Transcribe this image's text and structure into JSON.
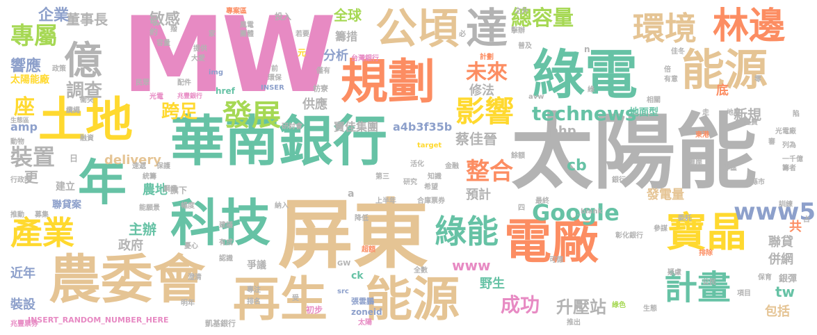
{
  "palette": {
    "pink": "#e78ac3",
    "green": "#66c2a5",
    "orange": "#fc8d62",
    "yellow": "#ffd92f",
    "tan": "#e5c494",
    "gray": "#b3b3b3",
    "lime": "#a6d854",
    "blue": "#8da0cb"
  },
  "words": [
    {
      "text": "MW",
      "color": "#e78ac3"
    },
    {
      "text": "太陽能",
      "color": "#b3b3b3"
    },
    {
      "text": "華南銀行",
      "color": "#66c2a5"
    },
    {
      "text": "屏東",
      "color": "#e5c494"
    },
    {
      "text": "農委會",
      "color": "#e5c494"
    },
    {
      "text": "科技",
      "color": "#66c2a5"
    },
    {
      "text": "綠電",
      "color": "#66c2a5"
    },
    {
      "text": "能源",
      "color": "#e5c494"
    },
    {
      "text": "土地",
      "color": "#ffd92f"
    },
    {
      "text": "規劃",
      "color": "#fc8d62"
    },
    {
      "text": "公頃",
      "color": "#e5c494"
    },
    {
      "text": "達",
      "color": "#b3b3b3"
    },
    {
      "text": "億",
      "color": "#b3b3b3"
    },
    {
      "text": "再生",
      "color": "#e5c494"
    },
    {
      "text": "能源",
      "color": "#e5c494"
    },
    {
      "text": "電廠",
      "color": "#fc8d62"
    },
    {
      "text": "年",
      "color": "#66c2a5"
    },
    {
      "text": "寶晶",
      "color": "#ffd92f"
    },
    {
      "text": "計畫",
      "color": "#66c2a5"
    },
    {
      "text": "林邊",
      "color": "#fc8d62"
    },
    {
      "text": "環境",
      "color": "#e5c494"
    },
    {
      "text": "產業",
      "color": "#ffd92f"
    },
    {
      "text": "發展",
      "color": "#a6d854"
    },
    {
      "text": "影響",
      "color": "#ffd92f"
    },
    {
      "text": "綠能",
      "color": "#66c2a5"
    },
    {
      "text": "總容量",
      "color": "#a6d854"
    },
    {
      "text": "專屬",
      "color": "#a6d854"
    },
    {
      "text": "Google",
      "color": "#66c2a5"
    },
    {
      "text": "technews",
      "color": "#66c2a5"
    },
    {
      "text": "整合",
      "color": "#fc8d62"
    },
    {
      "text": "www5",
      "color": "#8da0cb"
    },
    {
      "text": "成功",
      "color": "#e78ac3"
    },
    {
      "text": "升壓站",
      "color": "#b3b3b3"
    },
    {
      "text": "未來",
      "color": "#fc8d62"
    },
    {
      "text": "裝置",
      "color": "#b3b3b3"
    },
    {
      "text": "跨足",
      "color": "#ffd92f"
    },
    {
      "text": "座",
      "color": "#ffd92f"
    },
    {
      "text": "調查",
      "color": "#b3b3b3"
    },
    {
      "text": "董事長",
      "color": "#b3b3b3"
    },
    {
      "text": "敏感",
      "color": "#b3b3b3"
    },
    {
      "text": "企業",
      "color": "#8da0cb"
    },
    {
      "text": "響應",
      "color": "#8da0cb"
    },
    {
      "text": "太陽能廠",
      "color": "#ffd92f"
    },
    {
      "text": "全球",
      "color": "#a6d854"
    },
    {
      "text": "分析",
      "color": "#8da0cb"
    },
    {
      "text": "籌措",
      "color": "#b3b3b3"
    },
    {
      "text": "修法",
      "color": "#b3b3b3"
    },
    {
      "text": "供應",
      "color": "#b3b3b3"
    },
    {
      "text": "寶佳集團",
      "color": "#b3b3b3"
    },
    {
      "text": "a4b3f35b",
      "color": "#8da0cb"
    },
    {
      "text": "蔡佳晉",
      "color": "#b3b3b3"
    },
    {
      "text": "delivery",
      "color": "#e5c494"
    },
    {
      "text": "php",
      "color": "#b3b3b3"
    },
    {
      "text": "cb",
      "color": "#66c2a5"
    },
    {
      "text": "地面型",
      "color": "#66c2a5"
    },
    {
      "text": "新規",
      "color": "#b3b3b3"
    },
    {
      "text": "底",
      "color": "#fc8d62"
    },
    {
      "text": "amp",
      "color": "#8da0cb"
    },
    {
      "text": "主辦",
      "color": "#66c2a5"
    },
    {
      "text": "政府",
      "color": "#b3b3b3"
    },
    {
      "text": "農地",
      "color": "#66c2a5"
    },
    {
      "text": "旗下",
      "color": "#b3b3b3"
    },
    {
      "text": "預計",
      "color": "#b3b3b3"
    },
    {
      "text": "www",
      "color": "#e78ac3"
    },
    {
      "text": "發電量",
      "color": "#e5c494"
    },
    {
      "text": "聯貸",
      "color": "#b3b3b3"
    },
    {
      "text": "併網",
      "color": "#b3b3b3"
    },
    {
      "text": "tw",
      "color": "#66c2a5"
    },
    {
      "text": "包括",
      "color": "#e5c494"
    },
    {
      "text": "共",
      "color": "#fc8d62"
    },
    {
      "text": "銀彈",
      "color": "#b3b3b3"
    },
    {
      "text": "野生",
      "color": "#66c2a5"
    },
    {
      "text": "爭議",
      "color": "#b3b3b3"
    },
    {
      "text": "近年",
      "color": "#8da0cb"
    },
    {
      "text": "裝設",
      "color": "#8da0cb"
    },
    {
      "text": "聯貸案",
      "color": "#8da0cb"
    },
    {
      "text": "建立",
      "color": "#b3b3b3"
    },
    {
      "text": "更",
      "color": "#b3b3b3"
    },
    {
      "text": "ck",
      "color": "#66c2a5"
    },
    {
      "text": "zoneid",
      "color": "#8da0cb"
    },
    {
      "text": "張雲鵬",
      "color": "#8da0cb"
    },
    {
      "text": "INSERT_RANDOM_NUMBER_HERE",
      "color": "#e78ac3"
    },
    {
      "text": "凱基銀行",
      "color": "#b3b3b3"
    },
    {
      "text": "兆豐票券",
      "color": "#e78ac3"
    },
    {
      "text": "初步",
      "color": "#e78ac3"
    },
    {
      "text": "src",
      "color": "#8da0cb"
    },
    {
      "text": "太陽",
      "color": "#e78ac3"
    },
    {
      "text": "台灣銀行",
      "color": "#e78ac3"
    },
    {
      "text": "投入",
      "color": "#b3b3b3"
    },
    {
      "text": "專案區",
      "color": "#fc8d62"
    },
    {
      "text": "元",
      "color": "#ffd92f"
    },
    {
      "text": "若要",
      "color": "#b3b3b3"
    },
    {
      "text": "計劃",
      "color": "#fc8d62"
    },
    {
      "text": "href",
      "color": "#66c2a5"
    },
    {
      "text": "INSER",
      "color": "#8da0cb"
    },
    {
      "text": "img",
      "color": "#8da0cb"
    },
    {
      "text": "光電",
      "color": "#e78ac3"
    },
    {
      "text": "兆豐銀行",
      "color": "#e78ac3"
    },
    {
      "text": "研討會",
      "color": "#b3b3b3"
    },
    {
      "text": "枋寮",
      "color": "#b3b3b3"
    },
    {
      "text": "環保",
      "color": "#b3b3b3"
    },
    {
      "text": "僅有",
      "color": "#b3b3b3"
    },
    {
      "text": "target",
      "color": "#ffd92f"
    },
    {
      "text": "金融",
      "color": "#b3b3b3"
    },
    {
      "text": "知識",
      "color": "#b3b3b3"
    },
    {
      "text": "希望",
      "color": "#b3b3b3"
    },
    {
      "text": "第三",
      "color": "#b3b3b3"
    },
    {
      "text": "研究",
      "color": "#b3b3b3"
    },
    {
      "text": "合庫票券",
      "color": "#b3b3b3"
    },
    {
      "text": "上半年",
      "color": "#b3b3b3"
    },
    {
      "text": "降低",
      "color": "#b3b3b3"
    },
    {
      "text": "超額",
      "color": "#fc8d62"
    },
    {
      "text": "全數",
      "color": "#b3b3b3"
    },
    {
      "text": "排除",
      "color": "#fc8d62"
    },
    {
      "text": "彰化銀行",
      "color": "#b3b3b3"
    },
    {
      "text": "參謀",
      "color": "#b3b3b3"
    },
    {
      "text": "委託",
      "color": "#b3b3b3"
    },
    {
      "text": "縣市",
      "color": "#b3b3b3"
    },
    {
      "text": "訓練",
      "color": "#b3b3b3"
    },
    {
      "text": "保育",
      "color": "#b3b3b3"
    },
    {
      "text": "公民",
      "color": "#b3b3b3"
    },
    {
      "text": "項目",
      "color": "#b3b3b3"
    },
    {
      "text": "綠色",
      "color": "#a6d854"
    },
    {
      "text": "生態",
      "color": "#b3b3b3"
    },
    {
      "text": "推出",
      "color": "#b3b3b3"
    },
    {
      "text": "專注",
      "color": "#b3b3b3"
    },
    {
      "text": "排名",
      "color": "#b3b3b3"
    },
    {
      "text": "明年",
      "color": "#b3b3b3"
    },
    {
      "text": "受",
      "color": "#b3b3b3"
    },
    {
      "text": "澄清",
      "color": "#b3b3b3"
    },
    {
      "text": "認識",
      "color": "#b3b3b3"
    },
    {
      "text": "有成",
      "color": "#b3b3b3"
    },
    {
      "text": "憂心",
      "color": "#b3b3b3"
    },
    {
      "text": "建議",
      "color": "#b3b3b3"
    },
    {
      "text": "幅度",
      "color": "#b3b3b3"
    },
    {
      "text": "能願景",
      "color": "#b3b3b3"
    },
    {
      "text": "鋼纜",
      "color": "#b3b3b3"
    },
    {
      "text": "統籌",
      "color": "#b3b3b3"
    },
    {
      "text": "保護",
      "color": "#b3b3b3"
    },
    {
      "text": "行政院",
      "color": "#b3b3b3"
    },
    {
      "text": "募集",
      "color": "#b3b3b3"
    },
    {
      "text": "推動",
      "color": "#b3b3b3"
    },
    {
      "text": "速遞",
      "color": "#b3b3b3"
    },
    {
      "text": "融資",
      "color": "#b3b3b3"
    },
    {
      "text": "衝突",
      "color": "#b3b3b3"
    },
    {
      "text": "動物",
      "color": "#b3b3b3"
    },
    {
      "text": "纜繩",
      "color": "#b3b3b3"
    },
    {
      "text": "生態區",
      "color": "#b3b3b3"
    },
    {
      "text": "政策",
      "color": "#b3b3b3"
    },
    {
      "text": "大愛",
      "color": "#b3b3b3"
    },
    {
      "text": "提供",
      "color": "#b3b3b3"
    },
    {
      "text": "風電",
      "color": "#b3b3b3"
    },
    {
      "text": "團體",
      "color": "#b3b3b3"
    },
    {
      "text": "約",
      "color": "#b3b3b3"
    },
    {
      "text": "撥",
      "color": "#b3b3b3"
    },
    {
      "text": "容量",
      "color": "#b3b3b3"
    },
    {
      "text": "家",
      "color": "#b3b3b3"
    },
    {
      "text": "民眾",
      "color": "#b3b3b3"
    },
    {
      "text": "配件",
      "color": "#b3b3b3"
    },
    {
      "text": "前",
      "color": "#b3b3b3"
    },
    {
      "text": "必",
      "color": "#b3b3b3"
    },
    {
      "text": "普及",
      "color": "#b3b3b3"
    },
    {
      "text": "之外",
      "color": "#b3b3b3"
    },
    {
      "text": "擊辦",
      "color": "#b3b3b3"
    },
    {
      "text": "n",
      "color": "#b3b3b3"
    },
    {
      "text": "佳冬",
      "color": "#b3b3b3"
    },
    {
      "text": "有意",
      "color": "#b3b3b3"
    },
    {
      "text": "倍",
      "color": "#b3b3b3"
    },
    {
      "text": "相關",
      "color": "#b3b3b3"
    },
    {
      "text": "零",
      "color": "#b3b3b3"
    },
    {
      "text": "綠",
      "color": "#b3b3b3"
    },
    {
      "text": "avw",
      "color": "#b3b3b3"
    },
    {
      "text": "走",
      "color": "#b3b3b3"
    },
    {
      "text": "地層",
      "color": "#b3b3b3"
    },
    {
      "text": "經費",
      "color": "#b3b3b3"
    },
    {
      "text": "陷",
      "color": "#b3b3b3"
    },
    {
      "text": "光電廠",
      "color": "#b3b3b3"
    },
    {
      "text": "東港",
      "color": "#fc8d62"
    },
    {
      "text": "審",
      "color": "#b3b3b3"
    },
    {
      "text": "列為",
      "color": "#b3b3b3"
    },
    {
      "text": "一千億",
      "color": "#b3b3b3"
    },
    {
      "text": "籌者",
      "color": "#b3b3b3"
    },
    {
      "text": "離岸",
      "color": "#b3b3b3"
    },
    {
      "text": "專區",
      "color": "#b3b3b3"
    },
    {
      "text": "銀行",
      "color": "#b3b3b3"
    },
    {
      "text": "_blank",
      "color": "#b3b3b3"
    },
    {
      "text": "餘額",
      "color": "#b3b3b3"
    },
    {
      "text": "活化",
      "color": "#b3b3b3"
    },
    {
      "text": "最終",
      "color": "#b3b3b3"
    },
    {
      "text": "四",
      "color": "#b3b3b3"
    },
    {
      "text": "日",
      "color": "#b3b3b3"
    },
    {
      "text": "占",
      "color": "#b3b3b3"
    },
    {
      "text": "納入",
      "color": "#b3b3b3"
    },
    {
      "text": "a",
      "color": "#b3b3b3"
    },
    {
      "text": "可德",
      "color": "#b3b3b3"
    },
    {
      "text": "疑慮",
      "color": "#b3b3b3"
    },
    {
      "text": "GW",
      "color": "#b3b3b3"
    }
  ]
}
